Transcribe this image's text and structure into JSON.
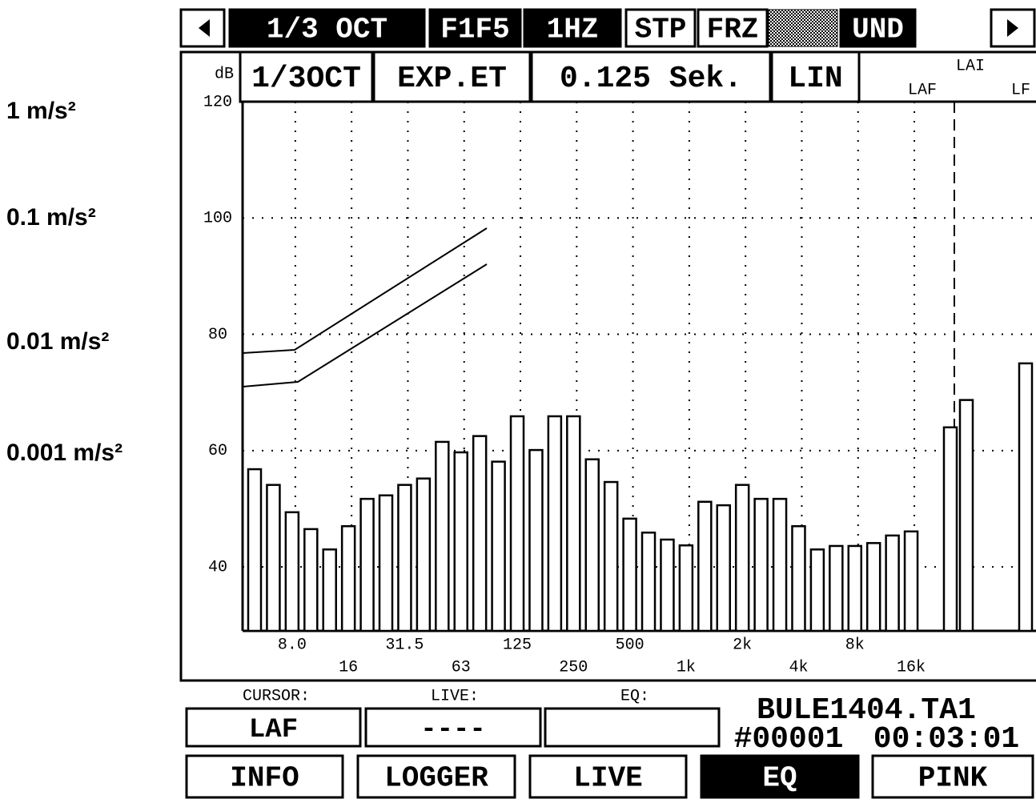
{
  "top_bar": {
    "items": [
      "1/3 OCT",
      "F1F5",
      "1HZ",
      "STP",
      "FRZ",
      "UND"
    ]
  },
  "header": {
    "unit": "dB",
    "cells": [
      "1/3OCT",
      "EXP.ET",
      "0.125 Sek.",
      "LIN"
    ]
  },
  "side_labels": [
    "1 m/s²",
    "0.1 m/s²",
    "0.01 m/s²",
    "0.001 m/s²"
  ],
  "chart_data": {
    "type": "bar",
    "categories": [
      null,
      null,
      "8.0",
      null,
      null,
      "16",
      null,
      null,
      "31.5",
      null,
      null,
      "63",
      null,
      null,
      "125",
      null,
      null,
      "250",
      null,
      null,
      "500",
      null,
      null,
      "1k",
      null,
      null,
      "2k",
      null,
      null,
      "4k",
      null,
      null,
      "8k",
      null,
      null,
      "16k"
    ],
    "values": [
      56.8,
      54.1,
      49.4,
      46.5,
      43.0,
      47.0,
      51.7,
      52.3,
      54.1,
      55.2,
      61.5,
      59.7,
      62.5,
      58.1,
      65.9,
      60.1,
      65.9,
      65.9,
      58.5,
      54.6,
      48.3,
      45.9,
      44.7,
      43.7,
      51.2,
      50.6,
      54.1,
      51.7,
      51.7,
      47.0,
      43.0,
      43.6,
      43.6,
      44.1,
      45.4,
      46.1
    ],
    "color": "#ffffff",
    "ylim": [
      29,
      120
    ],
    "yticks": [
      40,
      60,
      80,
      100,
      120
    ],
    "grid": true,
    "overall": {
      "names": [
        "LAF",
        "LAI",
        "LF"
      ],
      "values": [
        64.0,
        68.7,
        75.0
      ]
    }
  },
  "status": {
    "labels": [
      "CURSOR:",
      "LIVE:",
      "EQ:"
    ],
    "boxes": [
      "LAF",
      "----",
      ""
    ],
    "file": "BULE1404.TA1",
    "record": "#00001",
    "time": "00:03:01"
  },
  "buttons": [
    "INFO",
    "LOGGER",
    "LIVE",
    "EQ",
    "PINK"
  ]
}
